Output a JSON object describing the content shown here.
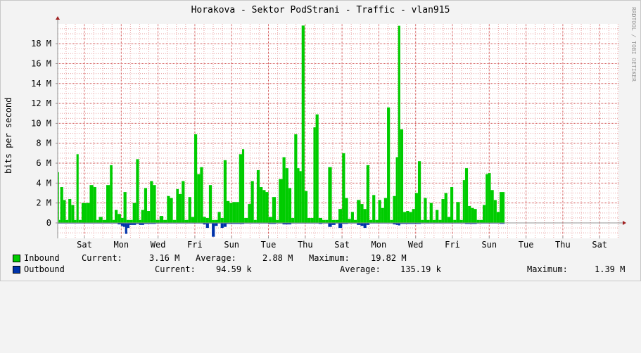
{
  "app": {
    "title": "Horakova - Sektor PodStrani - Traffic - vlan915",
    "watermark": "RRDTOOL / TOBI OETIKER"
  },
  "colors": {
    "inbound": "#00cc00",
    "outbound": "#0033aa",
    "grid_minor": "#e8a0a0",
    "grid_major": "#d05050",
    "axis": "#909090"
  },
  "legend": {
    "inbound": {
      "name": "Inbound",
      "current_label": "Current:",
      "current_value": "3.16 M",
      "average_label": "Average:",
      "average_value": "2.88 M",
      "maximum_label": "Maximum:",
      "maximum_value": "19.82 M"
    },
    "outbound": {
      "name": "Outbound",
      "current_label": "Current:",
      "current_value": "94.59 k",
      "average_label": "Average:",
      "average_value": "135.19 k",
      "maximum_label": "Maximum:",
      "maximum_value": "1.39 M"
    }
  },
  "chart_data": {
    "type": "area",
    "title": "Horakova - Sektor PodStrani - Traffic - vlan915",
    "ylabel": "bits per second",
    "yunit": "bits per second",
    "ylim": [
      -1.4,
      20
    ],
    "yticks": [
      0,
      2,
      4,
      6,
      8,
      10,
      12,
      14,
      16,
      18
    ],
    "ytick_labels": [
      "0",
      "2 M",
      "4 M",
      "6 M",
      "8 M",
      "10 M",
      "12 M",
      "14 M",
      "16 M",
      "18 M"
    ],
    "xlim": [
      -0.9,
      15.2
    ],
    "xticks": [
      0,
      1,
      2,
      3,
      4,
      5,
      6,
      7,
      8,
      9,
      10,
      11,
      12,
      13,
      14
    ],
    "xtick_labels": [
      "Sat",
      "Mon",
      "Wed",
      "Fri",
      "Sun",
      "Tue",
      "Thu",
      "Sat",
      "Mon",
      "Wed",
      "Fri",
      "Sun",
      "Tue",
      "Thu",
      "Sat"
    ],
    "grid": true,
    "series": [
      {
        "name": "Inbound",
        "unit": "Mbps",
        "points": [
          [
            -0.87,
            5.1
          ],
          [
            -0.78,
            0.3
          ],
          [
            -0.72,
            1.1
          ],
          [
            -0.66,
            0.3
          ],
          [
            -0.6,
            3.6
          ],
          [
            -0.52,
            2.3
          ],
          [
            -0.45,
            0.3
          ],
          [
            -0.38,
            2.4
          ],
          [
            -0.3,
            1.8
          ],
          [
            -0.22,
            0.3
          ],
          [
            -0.16,
            6.9
          ],
          [
            -0.1,
            0.3
          ],
          [
            -0.02,
            2.0
          ],
          [
            0.12,
            2.0
          ],
          [
            0.2,
            3.8
          ],
          [
            0.3,
            3.6
          ],
          [
            0.38,
            0.3
          ],
          [
            0.45,
            0.6
          ],
          [
            0.55,
            0.3
          ],
          [
            0.65,
            3.8
          ],
          [
            0.75,
            5.8
          ],
          [
            0.82,
            0.3
          ],
          [
            0.88,
            1.3
          ],
          [
            0.96,
            0.9
          ],
          [
            1.05,
            0.5
          ],
          [
            1.12,
            3.1
          ],
          [
            1.2,
            0.3
          ],
          [
            1.28,
            0.3
          ],
          [
            1.37,
            2.0
          ],
          [
            1.46,
            6.4
          ],
          [
            1.54,
            0.3
          ],
          [
            1.6,
            1.3
          ],
          [
            1.68,
            3.5
          ],
          [
            1.76,
            1.2
          ],
          [
            1.84,
            4.2
          ],
          [
            1.92,
            3.8
          ],
          [
            2.0,
            0.3
          ],
          [
            2.1,
            0.7
          ],
          [
            2.2,
            0.3
          ],
          [
            2.3,
            2.7
          ],
          [
            2.38,
            2.5
          ],
          [
            2.46,
            0.3
          ],
          [
            2.55,
            3.4
          ],
          [
            2.62,
            2.9
          ],
          [
            2.7,
            4.2
          ],
          [
            2.78,
            0.3
          ],
          [
            2.88,
            2.6
          ],
          [
            2.96,
            0.6
          ],
          [
            3.04,
            8.9
          ],
          [
            3.12,
            4.9
          ],
          [
            3.2,
            5.6
          ],
          [
            3.28,
            0.6
          ],
          [
            3.36,
            0.5
          ],
          [
            3.44,
            3.8
          ],
          [
            3.52,
            0.3
          ],
          [
            3.6,
            0.3
          ],
          [
            3.68,
            1.1
          ],
          [
            3.76,
            0.5
          ],
          [
            3.84,
            6.3
          ],
          [
            3.92,
            2.2
          ],
          [
            4.0,
            2.0
          ],
          [
            4.08,
            2.1
          ],
          [
            4.18,
            2.1
          ],
          [
            4.26,
            6.9
          ],
          [
            4.34,
            7.4
          ],
          [
            4.4,
            0.5
          ],
          [
            4.5,
            1.9
          ],
          [
            4.58,
            4.2
          ],
          [
            4.66,
            0.3
          ],
          [
            4.74,
            5.3
          ],
          [
            4.82,
            3.6
          ],
          [
            4.9,
            3.3
          ],
          [
            4.98,
            3.1
          ],
          [
            5.06,
            0.6
          ],
          [
            5.16,
            2.6
          ],
          [
            5.26,
            0.3
          ],
          [
            5.34,
            4.4
          ],
          [
            5.44,
            6.6
          ],
          [
            5.52,
            5.5
          ],
          [
            5.6,
            3.5
          ],
          [
            5.68,
            0.5
          ],
          [
            5.76,
            8.9
          ],
          [
            5.84,
            5.5
          ],
          [
            5.9,
            5.2
          ],
          [
            5.96,
            19.82
          ],
          [
            6.04,
            3.2
          ],
          [
            6.12,
            0.5
          ],
          [
            6.2,
            0.5
          ],
          [
            6.28,
            9.6
          ],
          [
            6.34,
            10.9
          ],
          [
            6.42,
            0.5
          ],
          [
            6.52,
            0.3
          ],
          [
            6.6,
            0.3
          ],
          [
            6.68,
            5.6
          ],
          [
            6.78,
            0.3
          ],
          [
            6.88,
            0.3
          ],
          [
            6.96,
            1.4
          ],
          [
            7.06,
            7.0
          ],
          [
            7.14,
            2.5
          ],
          [
            7.22,
            0.4
          ],
          [
            7.3,
            1.1
          ],
          [
            7.38,
            0.3
          ],
          [
            7.46,
            2.3
          ],
          [
            7.56,
            1.9
          ],
          [
            7.64,
            1.4
          ],
          [
            7.72,
            5.8
          ],
          [
            7.8,
            0.3
          ],
          [
            7.88,
            2.8
          ],
          [
            7.96,
            0.3
          ],
          [
            8.04,
            2.3
          ],
          [
            8.12,
            1.5
          ],
          [
            8.2,
            2.5
          ],
          [
            8.28,
            11.6
          ],
          [
            8.36,
            0.3
          ],
          [
            8.44,
            2.7
          ],
          [
            8.52,
            6.6
          ],
          [
            8.58,
            19.8
          ],
          [
            8.64,
            9.4
          ],
          [
            8.72,
            1.1
          ],
          [
            8.8,
            1.2
          ],
          [
            8.88,
            1.1
          ],
          [
            8.96,
            1.4
          ],
          [
            9.04,
            3.0
          ],
          [
            9.12,
            6.2
          ],
          [
            9.2,
            0.3
          ],
          [
            9.28,
            2.5
          ],
          [
            9.36,
            0.3
          ],
          [
            9.44,
            2.0
          ],
          [
            9.52,
            0.3
          ],
          [
            9.6,
            1.3
          ],
          [
            9.68,
            0.3
          ],
          [
            9.76,
            2.4
          ],
          [
            9.84,
            3.0
          ],
          [
            9.92,
            0.6
          ],
          [
            10.0,
            3.6
          ],
          [
            10.08,
            0.3
          ],
          [
            10.16,
            2.1
          ],
          [
            10.26,
            0.3
          ],
          [
            10.34,
            4.3
          ],
          [
            10.4,
            5.5
          ],
          [
            10.48,
            1.7
          ],
          [
            10.56,
            1.5
          ],
          [
            10.64,
            1.4
          ],
          [
            10.72,
            0.3
          ],
          [
            10.8,
            0.3
          ],
          [
            10.88,
            1.8
          ],
          [
            10.96,
            4.9
          ],
          [
            11.02,
            5.0
          ],
          [
            11.1,
            3.3
          ],
          [
            11.18,
            2.3
          ],
          [
            11.26,
            1.1
          ],
          [
            11.34,
            3.1
          ]
        ]
      },
      {
        "name": "Outbound",
        "unit": "Mbps",
        "points": [
          [
            -0.87,
            -0.06
          ],
          [
            -0.66,
            -0.06
          ],
          [
            -0.45,
            -0.06
          ],
          [
            -0.22,
            -0.06
          ],
          [
            0.0,
            -0.06
          ],
          [
            0.38,
            -0.06
          ],
          [
            0.82,
            -0.06
          ],
          [
            0.96,
            -0.15
          ],
          [
            1.05,
            -0.3
          ],
          [
            1.1,
            -0.4
          ],
          [
            1.16,
            -1.1
          ],
          [
            1.22,
            -0.5
          ],
          [
            1.28,
            -0.2
          ],
          [
            1.46,
            -0.1
          ],
          [
            1.54,
            -0.2
          ],
          [
            1.68,
            -0.1
          ],
          [
            2.0,
            -0.06
          ],
          [
            2.46,
            -0.06
          ],
          [
            2.78,
            -0.06
          ],
          [
            2.96,
            -0.06
          ],
          [
            3.28,
            -0.15
          ],
          [
            3.36,
            -0.5
          ],
          [
            3.44,
            -0.06
          ],
          [
            3.52,
            -1.39
          ],
          [
            3.6,
            -0.3
          ],
          [
            3.68,
            -0.06
          ],
          [
            3.76,
            -0.5
          ],
          [
            3.84,
            -0.4
          ],
          [
            3.92,
            -0.1
          ],
          [
            4.4,
            -0.06
          ],
          [
            4.66,
            -0.06
          ],
          [
            5.06,
            -0.1
          ],
          [
            5.26,
            -0.06
          ],
          [
            5.44,
            -0.15
          ],
          [
            5.68,
            -0.06
          ],
          [
            6.04,
            -0.06
          ],
          [
            6.42,
            -0.1
          ],
          [
            6.52,
            -0.06
          ],
          [
            6.68,
            -0.4
          ],
          [
            6.78,
            -0.2
          ],
          [
            6.88,
            -0.06
          ],
          [
            6.96,
            -0.5
          ],
          [
            7.06,
            -0.1
          ],
          [
            7.22,
            -0.06
          ],
          [
            7.38,
            -0.06
          ],
          [
            7.46,
            -0.2
          ],
          [
            7.56,
            -0.3
          ],
          [
            7.64,
            -0.5
          ],
          [
            7.72,
            -0.2
          ],
          [
            7.8,
            -0.06
          ],
          [
            7.96,
            -0.06
          ],
          [
            8.2,
            -0.06
          ],
          [
            8.36,
            -0.06
          ],
          [
            8.44,
            -0.15
          ],
          [
            8.52,
            -0.2
          ],
          [
            8.58,
            -0.25
          ],
          [
            8.64,
            -0.1
          ],
          [
            9.2,
            -0.06
          ],
          [
            9.52,
            -0.06
          ],
          [
            9.68,
            -0.06
          ],
          [
            9.92,
            -0.06
          ],
          [
            10.26,
            -0.06
          ],
          [
            10.4,
            -0.1
          ],
          [
            10.72,
            -0.06
          ],
          [
            10.8,
            -0.06
          ],
          [
            11.1,
            -0.06
          ],
          [
            11.34,
            -0.09
          ]
        ]
      }
    ]
  }
}
